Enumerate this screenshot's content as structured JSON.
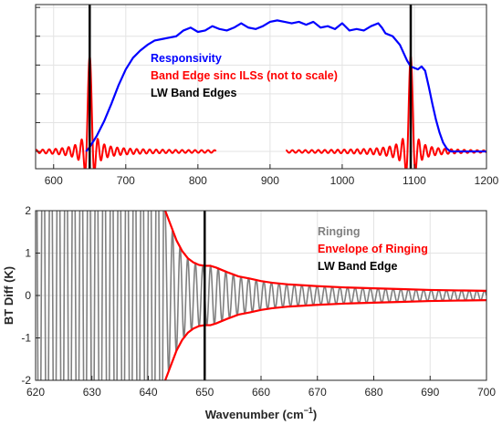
{
  "chart_data": [
    {
      "type": "line",
      "xlim": [
        575,
        1200
      ],
      "ylim": [
        -0.12,
        1.02
      ],
      "x_ticks": [
        "600",
        "700",
        "800",
        "900",
        "1000",
        "1100",
        "1200"
      ],
      "y_tick_values": [
        0,
        0.2,
        0.4,
        0.6,
        0.8,
        1.0
      ],
      "y_tick_labels_shown": false,
      "grid": true,
      "legend": {
        "placement": "center"
      },
      "series": [
        {
          "name": "Responsivity",
          "color": "#0000ff",
          "x": [
            645,
            650,
            655,
            660,
            665,
            670,
            680,
            690,
            700,
            710,
            720,
            730,
            740,
            750,
            760,
            770,
            780,
            790,
            800,
            810,
            820,
            830,
            840,
            850,
            860,
            870,
            880,
            890,
            900,
            910,
            920,
            930,
            940,
            950,
            960,
            970,
            980,
            990,
            1000,
            1010,
            1020,
            1030,
            1040,
            1050,
            1055,
            1060,
            1070,
            1080,
            1090,
            1095,
            1100,
            1105,
            1110,
            1115,
            1120,
            1125,
            1130,
            1135,
            1140,
            1145,
            1150,
            1160,
            1170,
            1180,
            1190,
            1200
          ],
          "y": [
            0.0,
            0.03,
            0.07,
            0.11,
            0.16,
            0.21,
            0.33,
            0.46,
            0.57,
            0.65,
            0.7,
            0.74,
            0.77,
            0.78,
            0.79,
            0.8,
            0.84,
            0.86,
            0.83,
            0.84,
            0.87,
            0.85,
            0.84,
            0.86,
            0.89,
            0.86,
            0.85,
            0.87,
            0.9,
            0.91,
            0.9,
            0.89,
            0.9,
            0.88,
            0.9,
            0.86,
            0.87,
            0.85,
            0.89,
            0.84,
            0.85,
            0.84,
            0.87,
            0.89,
            0.86,
            0.82,
            0.8,
            0.74,
            0.63,
            0.59,
            0.58,
            0.57,
            0.59,
            0.56,
            0.45,
            0.33,
            0.22,
            0.13,
            0.06,
            0.02,
            0.0,
            0.0,
            0.0,
            0.0,
            0.0,
            0.0
          ]
        },
        {
          "name": "Band Edge sinc ILSs (not to scale)",
          "color": "#ff0000",
          "centers": [
            650,
            1095
          ],
          "x_segments": [
            [
              575,
              825
            ],
            [
              922,
              1200
            ]
          ],
          "peak": 0.66,
          "period": 9.0
        },
        {
          "name": "LW Band Edges",
          "color": "#000000",
          "x": [
            650,
            1095
          ]
        }
      ]
    },
    {
      "type": "line",
      "xlim": [
        620,
        700
      ],
      "ylim": [
        -2,
        2
      ],
      "x_ticks": [
        "620",
        "630",
        "640",
        "650",
        "660",
        "670",
        "680",
        "690",
        "700"
      ],
      "y_ticks": [
        "-2",
        "-1",
        "0",
        "1",
        "2"
      ],
      "xlabel": "Wavenumber (cm",
      "xlabel_sup": "−1",
      "xlabel_end": ")",
      "ylabel": "BT Diff (K)",
      "grid": true,
      "legend": {
        "placement": "top-right"
      },
      "series": [
        {
          "name": "Ringing",
          "color": "#808080",
          "period": 1.35,
          "envelope_ref": "Envelope of Ringing"
        },
        {
          "name": "Envelope of Ringing",
          "color": "#ff0000",
          "x": [
            643,
            644,
            645,
            646,
            647,
            648,
            649,
            650,
            651,
            652,
            654,
            656,
            658,
            660,
            662,
            665,
            670,
            675,
            680,
            685,
            690,
            695,
            700
          ],
          "y": [
            2.0,
            1.65,
            1.3,
            1.05,
            0.88,
            0.78,
            0.72,
            0.7,
            0.7,
            0.66,
            0.55,
            0.45,
            0.4,
            0.34,
            0.3,
            0.26,
            0.22,
            0.19,
            0.17,
            0.15,
            0.13,
            0.12,
            0.11
          ]
        },
        {
          "name": "LW Band Edge",
          "color": "#000000",
          "x": [
            650
          ]
        }
      ]
    }
  ]
}
